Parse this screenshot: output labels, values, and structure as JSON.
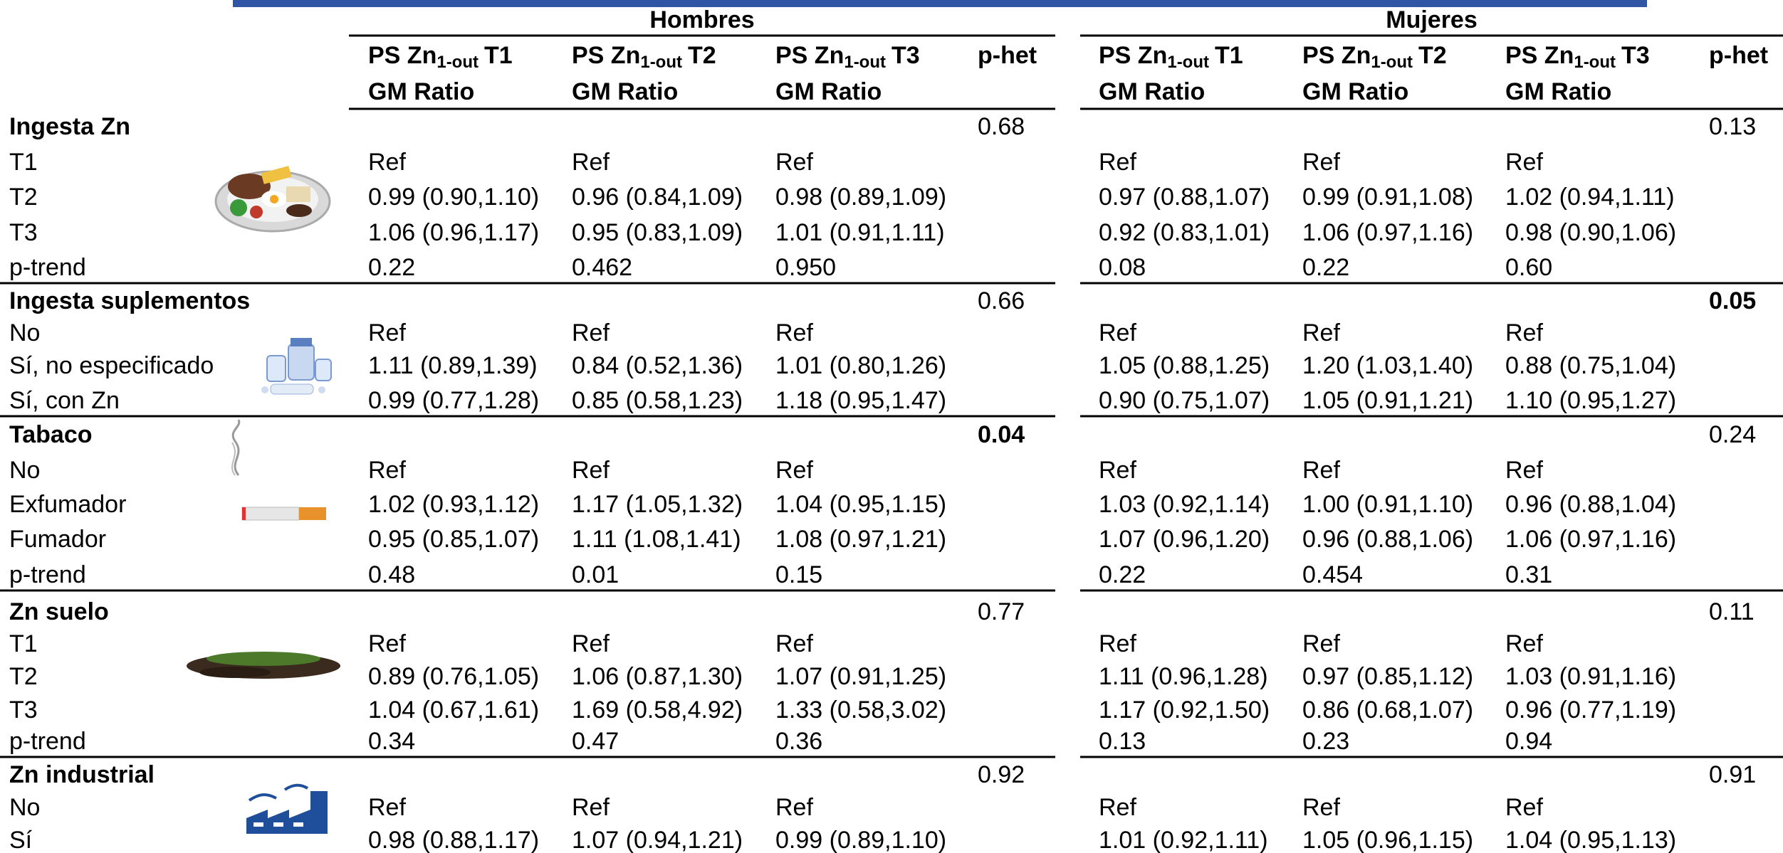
{
  "groups": [
    {
      "name": "Hombres",
      "columns": [
        {
          "pre": "PS Zn",
          "sub": "1-out",
          "post": "T1",
          "line2": "GM Ratio"
        },
        {
          "pre": "PS Zn",
          "sub": "1-out",
          "post": "T2",
          "line2": "GM Ratio"
        },
        {
          "pre": "PS Zn",
          "sub": "1-out",
          "post": "T3",
          "line2": "GM Ratio"
        }
      ],
      "phet": "p-het"
    },
    {
      "name": "Mujeres",
      "columns": [
        {
          "pre": "PS Zn",
          "sub": "1-out",
          "post": "T1",
          "line2": "GM Ratio"
        },
        {
          "pre": "PS Zn",
          "sub": "1-out",
          "post": "T2",
          "line2": "GM Ratio"
        },
        {
          "pre": "PS Zn",
          "sub": "1-out",
          "post": "T3",
          "line2": "GM Ratio"
        }
      ],
      "phet": "p-het"
    }
  ],
  "sections": [
    {
      "title": "Ingesta Zn",
      "phet": [
        "0.68",
        "0.13"
      ],
      "phet_bold": [
        false,
        false
      ],
      "rows": [
        {
          "label": "T1",
          "hombres": [
            "Ref",
            "Ref",
            "Ref"
          ],
          "mujeres": [
            "Ref",
            "Ref",
            "Ref"
          ]
        },
        {
          "label": "T2",
          "hombres": [
            "0.99 (0.90,1.10)",
            "0.96 (0.84,1.09)",
            "0.98 (0.89,1.09)"
          ],
          "mujeres": [
            "0.97 (0.88,1.07)",
            "0.99 (0.91,1.08)",
            "1.02 (0.94,1.11)"
          ]
        },
        {
          "label": "T3",
          "hombres": [
            "1.06 (0.96,1.17)",
            "0.95 (0.83,1.09)",
            "1.01 (0.91,1.11)"
          ],
          "mujeres": [
            "0.92 (0.83,1.01)",
            "1.06 (0.97,1.16)",
            "0.98 (0.90,1.06)"
          ]
        },
        {
          "label": "p-trend",
          "hombres": [
            "0.22",
            "0.462",
            "0.950"
          ],
          "mujeres": [
            "0.08",
            "0.22",
            "0.60"
          ]
        }
      ]
    },
    {
      "title": "Ingesta suplementos",
      "phet": [
        "0.66",
        "0.05"
      ],
      "phet_bold": [
        false,
        true
      ],
      "rows": [
        {
          "label": "No",
          "hombres": [
            "Ref",
            "Ref",
            "Ref"
          ],
          "mujeres": [
            "Ref",
            "Ref",
            "Ref"
          ]
        },
        {
          "label": "Sí, no especificado",
          "hombres": [
            "1.11 (0.89,1.39)",
            "0.84 (0.52,1.36)",
            "1.01 (0.80,1.26)"
          ],
          "mujeres": [
            "1.05 (0.88,1.25)",
            "1.20 (1.03,1.40)",
            "0.88 (0.75,1.04)"
          ]
        },
        {
          "label": "Sí, con Zn",
          "hombres": [
            "0.99 (0.77,1.28)",
            "0.85 (0.58,1.23)",
            "1.18 (0.95,1.47)"
          ],
          "mujeres": [
            "0.90 (0.75,1.07)",
            "1.05 (0.91,1.21)",
            "1.10 (0.95,1.27)"
          ]
        }
      ]
    },
    {
      "title": "Tabaco",
      "phet": [
        "0.04",
        "0.24"
      ],
      "phet_bold": [
        true,
        false
      ],
      "rows": [
        {
          "label": "No",
          "hombres": [
            "Ref",
            "Ref",
            "Ref"
          ],
          "mujeres": [
            "Ref",
            "Ref",
            "Ref"
          ]
        },
        {
          "label": "Exfumador",
          "hombres": [
            "1.02 (0.93,1.12)",
            "1.17 (1.05,1.32)",
            "1.04 (0.95,1.15)"
          ],
          "mujeres": [
            "1.03 (0.92,1.14)",
            "1.00 (0.91,1.10)",
            "0.96 (0.88,1.04)"
          ]
        },
        {
          "label": "Fumador",
          "hombres": [
            "0.95 (0.85,1.07)",
            "1.11 (1.08,1.41)",
            "1.08 (0.97,1.21)"
          ],
          "mujeres": [
            "1.07 (0.96,1.20)",
            "0.96 (0.88,1.06)",
            "1.06 (0.97,1.16)"
          ]
        },
        {
          "label": "p-trend",
          "hombres": [
            "0.48",
            "0.01",
            "0.15"
          ],
          "mujeres": [
            "0.22",
            "0.454",
            "0.31"
          ]
        }
      ]
    },
    {
      "title": "Zn suelo",
      "phet": [
        "0.77",
        "0.11"
      ],
      "phet_bold": [
        false,
        false
      ],
      "rows": [
        {
          "label": "T1",
          "hombres": [
            "Ref",
            "Ref",
            "Ref"
          ],
          "mujeres": [
            "Ref",
            "Ref",
            "Ref"
          ]
        },
        {
          "label": "T2",
          "hombres": [
            "0.89 (0.76,1.05)",
            "1.06 (0.87,1.30)",
            "1.07 (0.91,1.25)"
          ],
          "mujeres": [
            "1.11 (0.96,1.28)",
            "0.97 (0.85,1.12)",
            "1.03 (0.91,1.16)"
          ]
        },
        {
          "label": "T3",
          "hombres": [
            "1.04 (0.67,1.61)",
            "1.69 (0.58,4.92)",
            "1.33 (0.58,3.02)"
          ],
          "mujeres": [
            "1.17 (0.92,1.50)",
            "0.86 (0.68,1.07)",
            "0.96 (0.77,1.19)"
          ]
        },
        {
          "label": "p-trend",
          "hombres": [
            "0.34",
            "0.47",
            "0.36"
          ],
          "mujeres": [
            "0.13",
            "0.23",
            "0.94"
          ]
        }
      ]
    },
    {
      "title": "Zn industrial",
      "phet": [
        "0.92",
        "0.91"
      ],
      "phet_bold": [
        false,
        false
      ],
      "rows": [
        {
          "label": "No",
          "hombres": [
            "Ref",
            "Ref",
            "Ref"
          ],
          "mujeres": [
            "Ref",
            "Ref",
            "Ref"
          ]
        },
        {
          "label": "Sí",
          "hombres": [
            "0.98 (0.88,1.17)",
            "1.07 (0.94,1.21)",
            "0.99 (0.89,1.10)"
          ],
          "mujeres": [
            "1.01 (0.92,1.11)",
            "1.05 (0.96,1.15)",
            "1.04 (0.95,1.13)"
          ]
        }
      ]
    }
  ]
}
